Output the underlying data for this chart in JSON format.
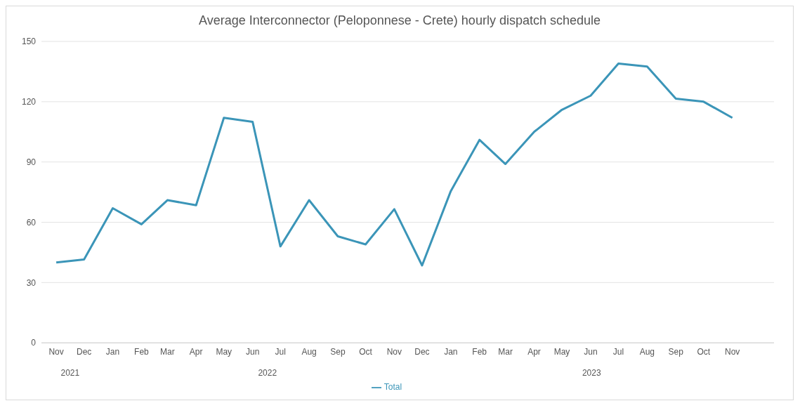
{
  "chart_data": {
    "type": "line",
    "title": "Average Interconnector (Peloponnese - Crete) hourly dispatch schedule",
    "x": [
      "2021-11",
      "2021-12",
      "2022-01",
      "2022-02",
      "2022-03",
      "2022-04",
      "2022-05",
      "2022-06",
      "2022-07",
      "2022-08",
      "2022-09",
      "2022-10",
      "2022-11",
      "2022-12",
      "2023-01",
      "2023-02",
      "2023-03",
      "2023-04",
      "2023-05",
      "2023-06",
      "2023-07",
      "2023-08",
      "2023-09",
      "2023-10",
      "2023-11"
    ],
    "series": [
      {
        "name": "Total",
        "color": "#3b95b8",
        "values": [
          40,
          41.5,
          67,
          59,
          71,
          68.5,
          112,
          110,
          48,
          71,
          53,
          49,
          66.5,
          38.5,
          75.5,
          101,
          89,
          105,
          116,
          123,
          139,
          137.5,
          121.5,
          120,
          112
        ]
      }
    ],
    "xlim": [
      "2021-10-16",
      "2023-12-16"
    ],
    "xticks": [
      {
        "value": "2021-11",
        "label": "Nov"
      },
      {
        "value": "2021-12",
        "label": "Dec"
      },
      {
        "value": "2022-01",
        "label": "Jan"
      },
      {
        "value": "2022-02",
        "label": "Feb"
      },
      {
        "value": "2022-03",
        "label": "Mar"
      },
      {
        "value": "2022-04",
        "label": "Apr"
      },
      {
        "value": "2022-05",
        "label": "May"
      },
      {
        "value": "2022-06",
        "label": "Jun"
      },
      {
        "value": "2022-07",
        "label": "Jul"
      },
      {
        "value": "2022-08",
        "label": "Aug"
      },
      {
        "value": "2022-09",
        "label": "Sep"
      },
      {
        "value": "2022-10",
        "label": "Oct"
      },
      {
        "value": "2022-11",
        "label": "Nov"
      },
      {
        "value": "2022-12",
        "label": "Dec"
      },
      {
        "value": "2023-01",
        "label": "Jan"
      },
      {
        "value": "2023-02",
        "label": "Feb"
      },
      {
        "value": "2023-03",
        "label": "Mar"
      },
      {
        "value": "2023-04",
        "label": "Apr"
      },
      {
        "value": "2023-05",
        "label": "May"
      },
      {
        "value": "2023-06",
        "label": "Jun"
      },
      {
        "value": "2023-07",
        "label": "Jul"
      },
      {
        "value": "2023-08",
        "label": "Aug"
      },
      {
        "value": "2023-09",
        "label": "Sep"
      },
      {
        "value": "2023-10",
        "label": "Oct"
      },
      {
        "value": "2023-11",
        "label": "Nov"
      }
    ],
    "annotations": [
      "2021",
      "2022",
      "2023"
    ],
    "ylim": [
      0,
      150
    ],
    "yticks": [
      0,
      30,
      60,
      90,
      120,
      150
    ],
    "grid": "y",
    "legend": "bottom",
    "marker": "none",
    "line_style": "solid"
  }
}
